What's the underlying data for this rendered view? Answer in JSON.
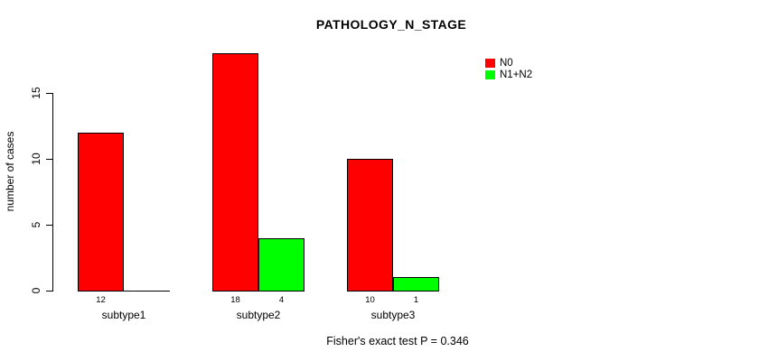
{
  "title": "PATHOLOGY_N_STAGE",
  "ylabel": "number of cases",
  "footer": "Fisher's exact test P = 0.346",
  "legend": {
    "items": [
      {
        "label": "N0",
        "color": "#ff0000"
      },
      {
        "label": "N1+N2",
        "color": "#00ff00"
      }
    ]
  },
  "chart_data": {
    "type": "bar",
    "title": "PATHOLOGY_N_STAGE",
    "categories": [
      "subtype1",
      "subtype2",
      "subtype3"
    ],
    "series": [
      {
        "name": "N0",
        "color": "#ff0000",
        "values": [
          12,
          18,
          10
        ]
      },
      {
        "name": "N1+N2",
        "color": "#00ff00",
        "values": [
          0,
          4,
          1
        ]
      }
    ],
    "bar_value_labels": {
      "N0": [
        12,
        18,
        10
      ],
      "N1+N2": [
        null,
        4,
        1
      ]
    },
    "xlabel": "",
    "ylabel": "number of cases",
    "yticks": [
      0,
      5,
      10,
      15
    ],
    "ylim": [
      0,
      19
    ],
    "grid": false,
    "legend_position": "top-right",
    "annotation": "Fisher's exact test P = 0.346"
  }
}
